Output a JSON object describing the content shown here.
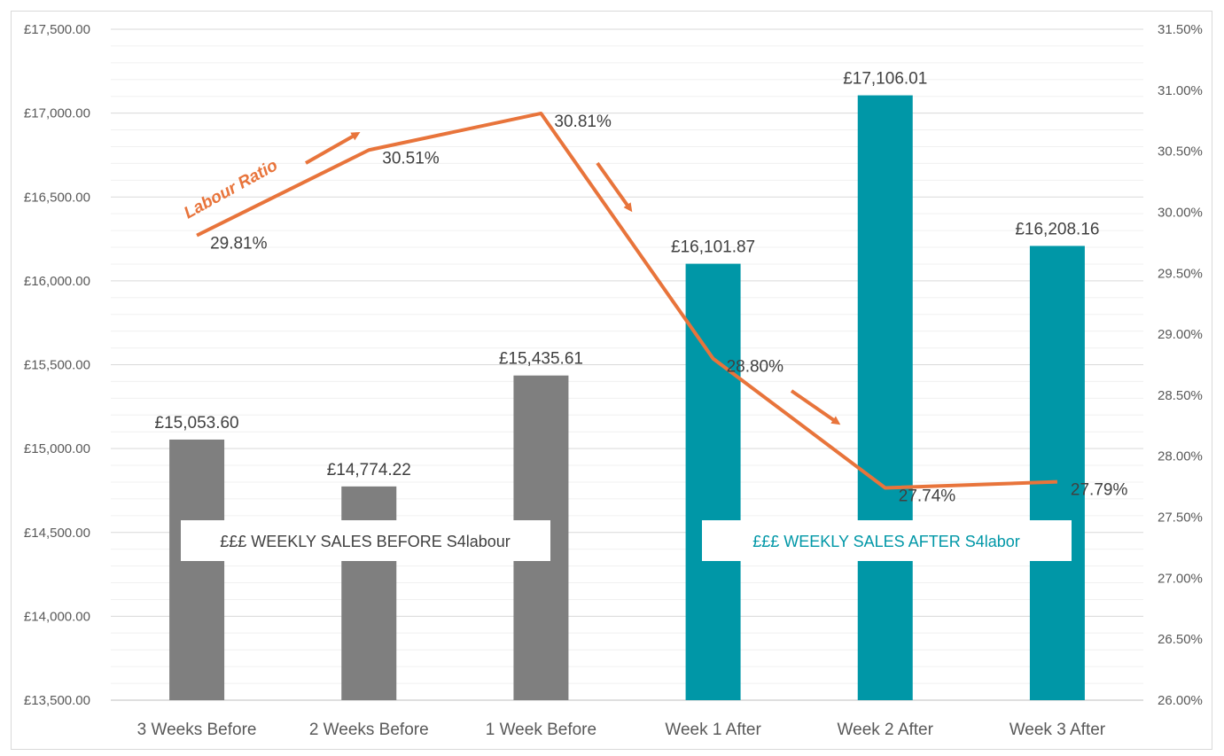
{
  "chart_data": {
    "type": "bar",
    "categories": [
      "3 Weeks Before",
      "2 Weeks Before",
      "1 Week Before",
      "Week 1 After",
      "Week 2 After",
      "Week 3 After"
    ],
    "series": [
      {
        "kind": "bar",
        "axis": "left",
        "values": [
          15053.6,
          14774.22,
          15435.61,
          16101.87,
          17106.01,
          16208.16
        ],
        "value_labels": [
          "£15,053.60",
          "£14,774.22",
          "£15,435.61",
          "£16,101.87",
          "£17,106.01",
          "£16,208.16"
        ],
        "colors": [
          "#7f7f7f",
          "#7f7f7f",
          "#7f7f7f",
          "#0097a7",
          "#0097a7",
          "#0097a7"
        ]
      },
      {
        "kind": "line",
        "axis": "right",
        "values": [
          29.81,
          30.51,
          30.81,
          28.8,
          27.74,
          27.79
        ],
        "value_labels": [
          "29.81%",
          "30.51%",
          "30.81%",
          "28.80%",
          "27.74%",
          "27.79%"
        ],
        "color": "#e8743b"
      }
    ],
    "y_left": {
      "min": 13500,
      "max": 17500,
      "step": 500,
      "tick_labels": [
        "£13,500.00",
        "£14,000.00",
        "£14,500.00",
        "£15,000.00",
        "£15,500.00",
        "£16,000.00",
        "£16,500.00",
        "£17,000.00",
        "£17,500.00"
      ]
    },
    "y_right": {
      "min": 26,
      "max": 31.5,
      "step": 0.5,
      "tick_labels": [
        "26.00%",
        "26.50%",
        "27.00%",
        "27.50%",
        "28.00%",
        "28.50%",
        "29.00%",
        "29.50%",
        "30.00%",
        "30.50%",
        "31.00%",
        "31.50%"
      ]
    },
    "grid": true,
    "annotations": {
      "labour_ratio": "Labour Ratio",
      "before_box": "£££ WEEKLY SALES BEFORE S4labour",
      "after_box": "£££ WEEKLY SALES AFTER S4labor"
    },
    "annotation_colors": {
      "orange": "#e8743b",
      "before_text": "#404040",
      "after_text": "#0097a7"
    }
  }
}
